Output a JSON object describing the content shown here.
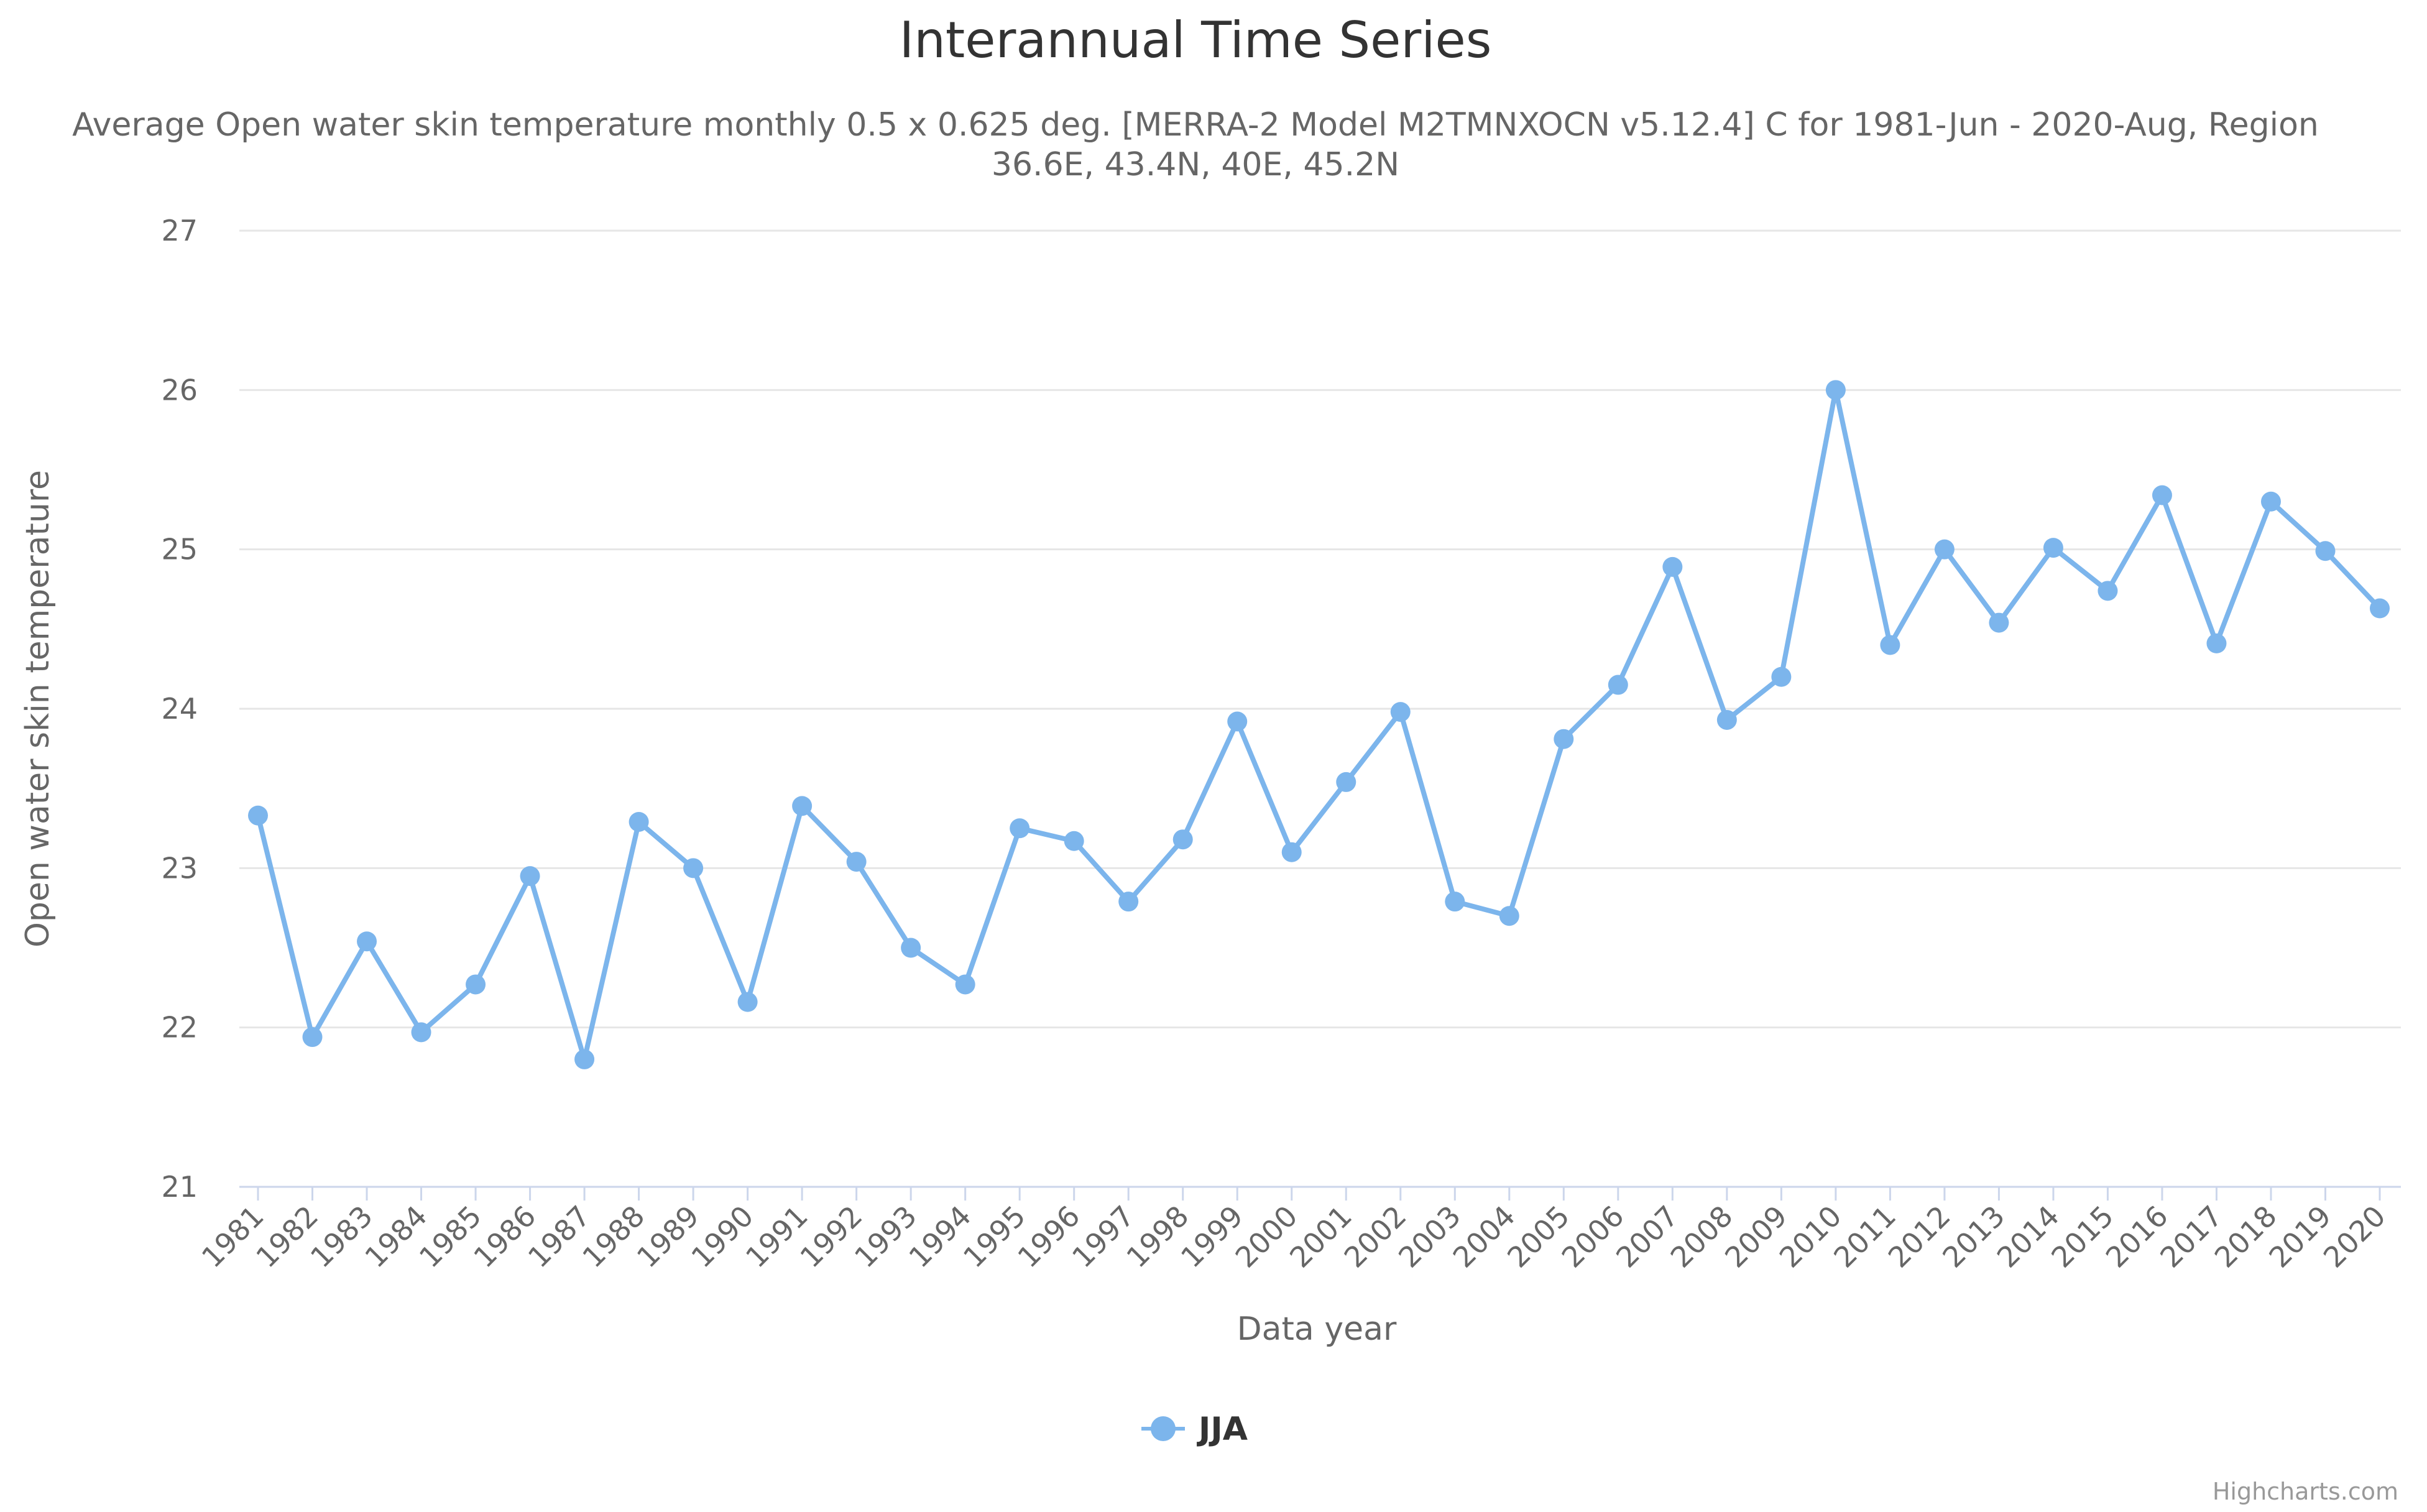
{
  "colors": {
    "series": "#7cb5ec",
    "grid": "#e6e6e6",
    "axis": "#ccd6eb"
  },
  "chart_data": {
    "type": "line",
    "title": "Interannual Time Series",
    "subtitle_line1": "Average Open water skin temperature monthly 0.5 x 0.625 deg. [MERRA-2 Model M2TMNXOCN v5.12.4] C for 1981-Jun - 2020-Aug, Region",
    "subtitle_line2": "36.6E, 43.4N, 40E, 45.2N",
    "xlabel": "Data year",
    "ylabel": "Open water skin temperature",
    "ylim": [
      21,
      27
    ],
    "yticks": [
      "21",
      "22",
      "23",
      "24",
      "25",
      "26",
      "27"
    ],
    "categories": [
      "1981",
      "1982",
      "1983",
      "1984",
      "1985",
      "1986",
      "1987",
      "1988",
      "1989",
      "1990",
      "1991",
      "1992",
      "1993",
      "1994",
      "1995",
      "1996",
      "1997",
      "1998",
      "1999",
      "2000",
      "2001",
      "2002",
      "2003",
      "2004",
      "2005",
      "2006",
      "2007",
      "2008",
      "2009",
      "2010",
      "2011",
      "2012",
      "2013",
      "2014",
      "2015",
      "2016",
      "2017",
      "2018",
      "2019",
      "2020"
    ],
    "series": [
      {
        "name": "JJA",
        "values": [
          23.33,
          21.94,
          22.54,
          21.97,
          22.27,
          22.95,
          21.8,
          23.29,
          23.0,
          22.16,
          23.39,
          23.04,
          22.5,
          22.27,
          23.25,
          23.17,
          22.79,
          23.18,
          23.92,
          23.1,
          23.54,
          23.98,
          22.79,
          22.7,
          23.81,
          24.15,
          24.89,
          23.93,
          24.2,
          26.0,
          24.4,
          25.0,
          24.54,
          25.01,
          24.74,
          25.34,
          24.41,
          25.3,
          24.99,
          24.63
        ]
      }
    ],
    "legend": "bottom-center",
    "credit": "Highcharts.com"
  }
}
